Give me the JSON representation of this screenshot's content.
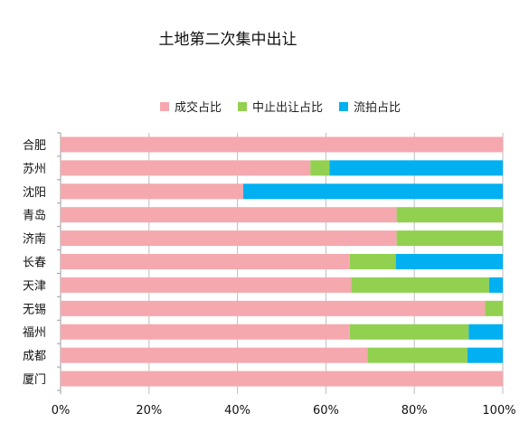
{
  "chart_data": {
    "type": "bar",
    "orientation": "horizontal",
    "stacked": "percent",
    "title": "土地第二次集中出让",
    "legend_position": "top",
    "categories": [
      "合肥",
      "苏州",
      "沈阳",
      "青岛",
      "济南",
      "长春",
      "天津",
      "无锡",
      "福州",
      "成都",
      "厦门"
    ],
    "series": [
      {
        "name": "成交占比",
        "color": "#f5a8ae",
        "values": [
          100,
          56.5,
          41.3,
          76,
          76,
          65.4,
          65.7,
          96,
          65.4,
          69.4,
          100
        ]
      },
      {
        "name": "中止出让占比",
        "color": "#92d050",
        "values": [
          0,
          4.3,
          0,
          24,
          24,
          10.4,
          31.2,
          4,
          26.9,
          22.6,
          0
        ]
      },
      {
        "name": "流拍占比",
        "color": "#00b0f0",
        "values": [
          0,
          39.2,
          58.7,
          0,
          0,
          24.2,
          3.1,
          0,
          7.7,
          8,
          0
        ]
      }
    ],
    "xlim": [
      0,
      100
    ],
    "xticks": [
      "0%",
      "20%",
      "40%",
      "60%",
      "80%",
      "100%"
    ],
    "grid": true
  }
}
